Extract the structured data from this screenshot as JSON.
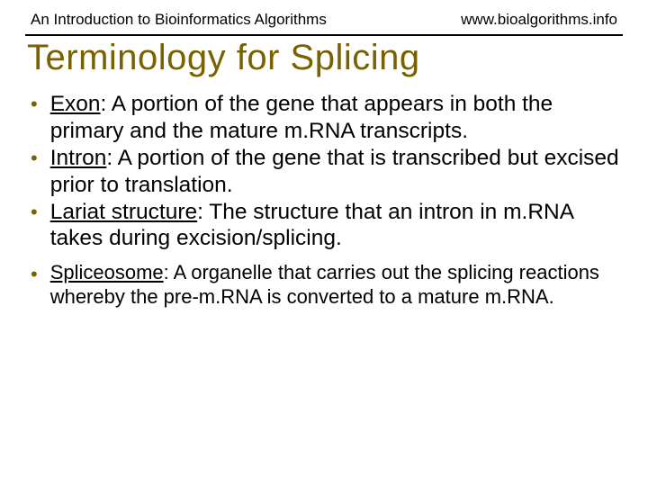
{
  "header": {
    "left": "An Introduction to Bioinformatics Algorithms",
    "right": "www.bioalgorithms.info"
  },
  "title": "Terminology for Splicing",
  "bullets": [
    {
      "term": "Exon",
      "text": ": A portion of the gene that appears in both the primary and the mature m.RNA transcripts.",
      "small": false,
      "gap": false
    },
    {
      "term": "Intron",
      "text": ": A portion of the gene that is transcribed but excised prior to translation.",
      "small": false,
      "gap": false
    },
    {
      "term": "Lariat structure",
      "text": ": The structure that an intron in m.RNA takes during excision/splicing.",
      "small": false,
      "gap": false
    },
    {
      "term": "Spliceosome",
      "text": ": A organelle that carries out the splicing reactions whereby the pre-m.RNA is converted to a mature m.RNA.",
      "small": true,
      "gap": true
    }
  ],
  "colors": {
    "accent": "#7a6100",
    "text": "#000000",
    "bg": "#ffffff",
    "rule": "#000000"
  }
}
